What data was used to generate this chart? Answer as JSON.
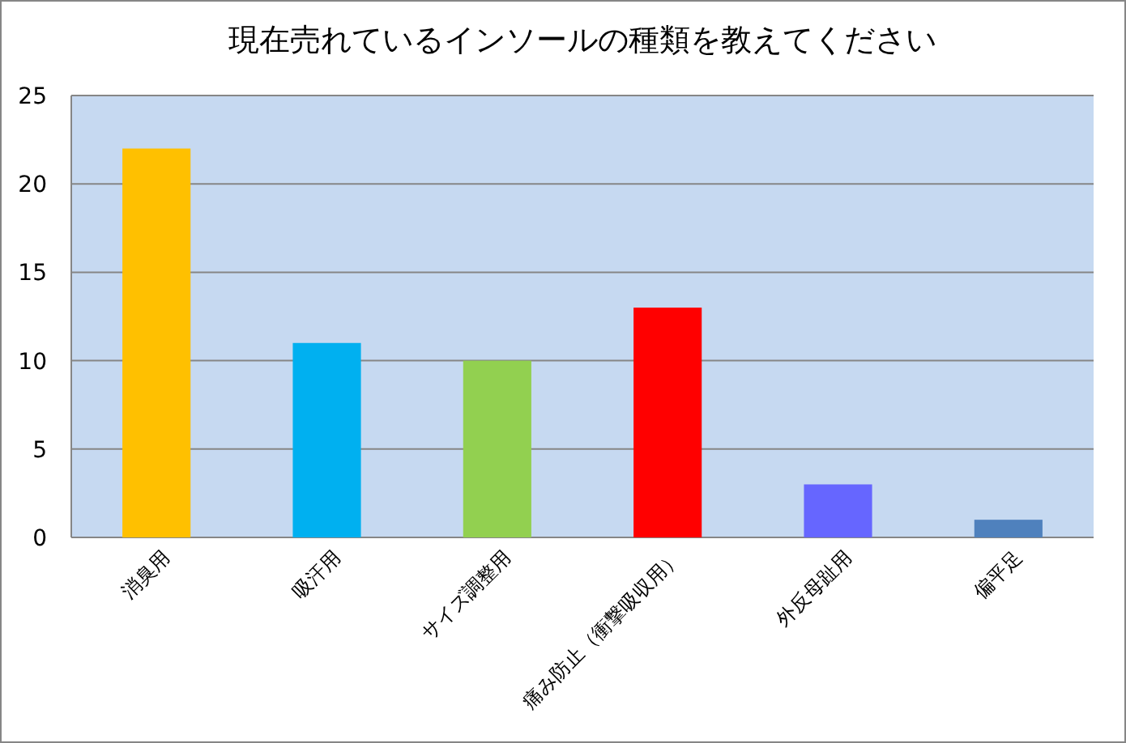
{
  "chart_data": {
    "type": "bar",
    "title": "現在売れているインソールの種類を教えてください",
    "categories": [
      "消臭用",
      "吸汗用",
      "サイズ調整用",
      "痛み防止（衝撃吸収用）",
      "外反母趾用",
      "偏平足"
    ],
    "values": [
      22,
      11,
      10,
      13,
      3,
      1
    ],
    "colors": [
      "#ffc000",
      "#00b0f0",
      "#92d050",
      "#ff0000",
      "#6666ff",
      "#4f81bd"
    ],
    "ylim": [
      0,
      25
    ],
    "yticks": [
      0,
      5,
      10,
      15,
      20,
      25
    ],
    "grid": "y"
  }
}
